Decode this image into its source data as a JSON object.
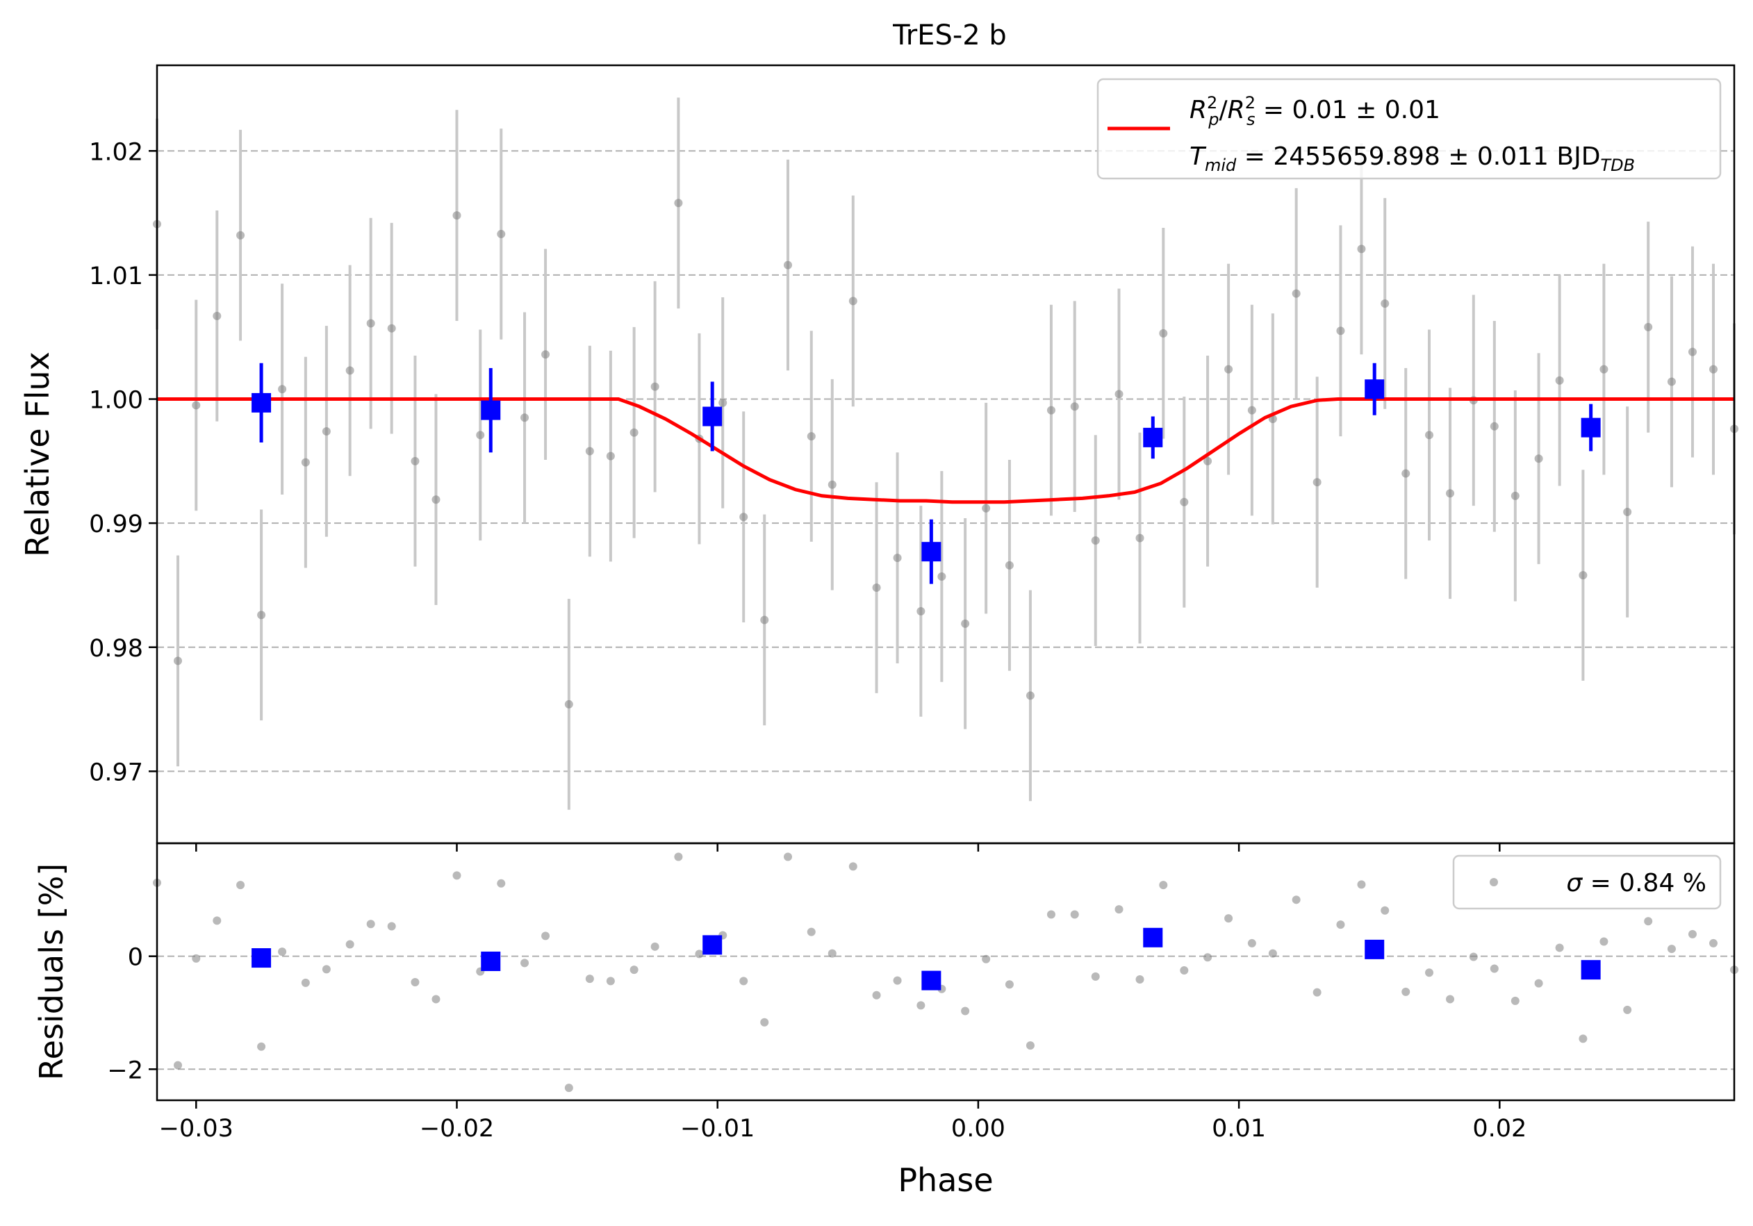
{
  "colors": {
    "binned": "#0000ff",
    "model": "#ff0000",
    "raw_points": "#808080",
    "raw_errorbars": "#c8c8c8",
    "grid": "#b0b0b0"
  },
  "chart_data": [
    {
      "panel": "light curve",
      "type": "scatter",
      "title": "TrES-2 b",
      "xlabel": "",
      "ylabel": "Relative Flux",
      "xlim": [
        -0.0315,
        0.029
      ],
      "ylim": [
        0.9642,
        1.0269
      ],
      "x_ticks": [
        -0.03,
        -0.02,
        -0.01,
        0.0,
        0.01,
        0.02
      ],
      "y_ticks": [
        0.97,
        0.98,
        0.99,
        1.0,
        1.01,
        1.02
      ],
      "y_tick_labels": [
        "0.97",
        "0.98",
        "0.99",
        "1.00",
        "1.01",
        "1.02"
      ],
      "grid": "horizontal dashed",
      "legend_position": "upper right",
      "legend": {
        "line1": {
          "lhs_main": "R",
          "lhs_sup1": "2",
          "lhs_sub1": "p",
          "slash": "/",
          "lhs_main2": "R",
          "lhs_sup2": "2",
          "lhs_sub2": "s",
          "rhs": " = 0.01 ± 0.01"
        },
        "line2": {
          "lhs_main": "T",
          "lhs_sub": "mid",
          "rhs": " = 2455659.898 ± 0.011 BJD",
          "unit_sub": "TDB"
        }
      },
      "model": {
        "name": "",
        "x": [
          -0.0315,
          -0.0138,
          -0.013,
          -0.012,
          -0.011,
          -0.01,
          -0.009,
          -0.008,
          -0.007,
          -0.006,
          -0.005,
          -0.004,
          -0.003,
          -0.002,
          -0.001,
          0.0,
          0.001,
          0.002,
          0.003,
          0.004,
          0.005,
          0.006,
          0.007,
          0.008,
          0.009,
          0.01,
          0.011,
          0.012,
          0.013,
          0.0138,
          0.029
        ],
        "y": [
          1.0,
          1.0,
          0.9994,
          0.9984,
          0.9972,
          0.9959,
          0.9946,
          0.9935,
          0.9927,
          0.9922,
          0.992,
          0.9919,
          0.9918,
          0.9918,
          0.9917,
          0.9917,
          0.9917,
          0.9918,
          0.9919,
          0.992,
          0.9922,
          0.9925,
          0.9932,
          0.9944,
          0.9958,
          0.9972,
          0.9985,
          0.9994,
          0.9999,
          1.0,
          1.0
        ]
      },
      "raw": {
        "x": [
          -0.0315,
          -0.0307,
          -0.03,
          -0.0292,
          -0.0283,
          -0.0275,
          -0.0267,
          -0.0258,
          -0.025,
          -0.0241,
          -0.0233,
          -0.0225,
          -0.0216,
          -0.0208,
          -0.02,
          -0.0191,
          -0.0183,
          -0.0174,
          -0.0166,
          -0.0157,
          -0.0149,
          -0.0141,
          -0.0132,
          -0.0124,
          -0.0115,
          -0.0107,
          -0.0098,
          -0.009,
          -0.0082,
          -0.0073,
          -0.0064,
          -0.0056,
          -0.0048,
          -0.0039,
          -0.0031,
          -0.0022,
          -0.0014,
          -0.0005,
          0.0003,
          0.0012,
          0.002,
          0.0028,
          0.0037,
          0.0045,
          0.0054,
          0.0062,
          0.0071,
          0.0079,
          0.0088,
          0.0096,
          0.0105,
          0.0113,
          0.0122,
          0.013,
          0.0139,
          0.0147,
          0.0156,
          0.0164,
          0.0173,
          0.0181,
          0.019,
          0.0198,
          0.0206,
          0.0215,
          0.0223,
          0.0232,
          0.024,
          0.0249,
          0.0257,
          0.0266,
          0.0274,
          0.0282,
          0.029
        ],
        "y": [
          1.0141,
          0.9789,
          0.9995,
          1.0067,
          1.0132,
          0.9826,
          1.0008,
          0.9949,
          0.9974,
          1.0023,
          1.0061,
          1.0057,
          0.995,
          0.9919,
          1.0148,
          0.9971,
          1.0133,
          0.9985,
          1.0036,
          0.9754,
          0.9958,
          0.9954,
          0.9973,
          1.001,
          1.0158,
          0.9968,
          0.9997,
          0.9905,
          0.9822,
          1.0108,
          0.997,
          0.9931,
          1.0079,
          0.9848,
          0.9872,
          0.9829,
          0.9857,
          0.9819,
          0.9912,
          0.9866,
          0.9761,
          0.9991,
          0.9994,
          0.9886,
          1.0004,
          0.9888,
          1.0053,
          0.9917,
          0.995,
          1.0024,
          0.9991,
          0.9984,
          1.0085,
          0.9933,
          1.0055,
          1.0121,
          1.0077,
          0.994,
          0.9971,
          0.9924,
          0.9999,
          0.9978,
          0.9922,
          0.9952,
          1.0015,
          0.9858,
          1.0024,
          0.9909,
          1.0058,
          1.0014,
          1.0038,
          1.0024,
          0.9976
        ],
        "err": 0.0085
      },
      "binned": {
        "x": [
          -0.0275,
          -0.0187,
          -0.0102,
          -0.0018,
          0.0067,
          0.0152,
          0.0235
        ],
        "y": [
          0.9997,
          0.9991,
          0.9986,
          0.9877,
          0.9969,
          1.0008,
          0.9977
        ],
        "err": [
          0.0032,
          0.0034,
          0.0028,
          0.0026,
          0.0017,
          0.0021,
          0.0019
        ]
      }
    },
    {
      "panel": "residuals",
      "type": "scatter",
      "xlabel": "Phase",
      "ylabel": "Residuals [%]",
      "xlim": [
        -0.0315,
        0.029
      ],
      "ylim": [
        -2.55,
        2.0
      ],
      "x_ticks": [
        -0.03,
        -0.02,
        -0.01,
        0.0,
        0.01,
        0.02
      ],
      "x_tick_labels": [
        "−0.03",
        "−0.02",
        "−0.01",
        "0.00",
        "0.01",
        "0.02"
      ],
      "y_ticks": [
        -2,
        0
      ],
      "y_tick_labels": [
        "−2",
        "0"
      ],
      "grid": "horizontal dashed",
      "legend_position": "upper right",
      "legend": {
        "symbol": "σ",
        "rhs": " = 0.84 %"
      },
      "raw": {
        "x": [
          -0.0315,
          -0.0307,
          -0.03,
          -0.0292,
          -0.0283,
          -0.0275,
          -0.0267,
          -0.0258,
          -0.025,
          -0.0241,
          -0.0233,
          -0.0225,
          -0.0216,
          -0.0208,
          -0.02,
          -0.0191,
          -0.0183,
          -0.0174,
          -0.0166,
          -0.0157,
          -0.0149,
          -0.0141,
          -0.0132,
          -0.0124,
          -0.0115,
          -0.0107,
          -0.0098,
          -0.009,
          -0.0082,
          -0.0073,
          -0.0064,
          -0.0056,
          -0.0048,
          -0.0039,
          -0.0031,
          -0.0022,
          -0.0014,
          -0.0005,
          0.0003,
          0.0012,
          0.002,
          0.0028,
          0.0037,
          0.0045,
          0.0054,
          0.0062,
          0.0071,
          0.0079,
          0.0088,
          0.0096,
          0.0105,
          0.0113,
          0.0122,
          0.013,
          0.0139,
          0.0147,
          0.0156,
          0.0164,
          0.0173,
          0.0181,
          0.019,
          0.0198,
          0.0206,
          0.0215,
          0.0223,
          0.0232,
          0.024,
          0.0249,
          0.0257,
          0.0266,
          0.0274,
          0.0282,
          0.029
        ],
        "y": [
          1.3,
          -1.93,
          -0.04,
          0.63,
          1.26,
          -1.6,
          0.08,
          -0.47,
          -0.23,
          0.21,
          0.57,
          0.53,
          -0.46,
          -0.76,
          1.43,
          -0.27,
          1.29,
          -0.12,
          0.36,
          -2.33,
          -0.4,
          -0.44,
          -0.24,
          0.17,
          1.76,
          0.04,
          0.37,
          -0.44,
          -1.17,
          1.76,
          0.43,
          0.05,
          1.59,
          -0.69,
          -0.43,
          -0.87,
          -0.58,
          -0.97,
          -0.05,
          -0.5,
          -1.58,
          0.74,
          0.74,
          -0.36,
          0.83,
          -0.41,
          1.26,
          -0.25,
          -0.02,
          0.67,
          0.23,
          0.05,
          1.0,
          -0.64,
          0.56,
          1.27,
          0.81,
          -0.63,
          -0.29,
          -0.76,
          -0.01,
          -0.22,
          -0.79,
          -0.48,
          0.15,
          -1.46,
          0.26,
          -0.95,
          0.62,
          0.13,
          0.39,
          0.23,
          -0.24
        ]
      },
      "binned": {
        "x": [
          -0.0275,
          -0.0187,
          -0.0102,
          -0.0018,
          0.0067,
          0.0152,
          0.0235
        ],
        "y": [
          -0.03,
          -0.09,
          0.2,
          -0.43,
          0.33,
          0.12,
          -0.24
        ]
      }
    }
  ]
}
